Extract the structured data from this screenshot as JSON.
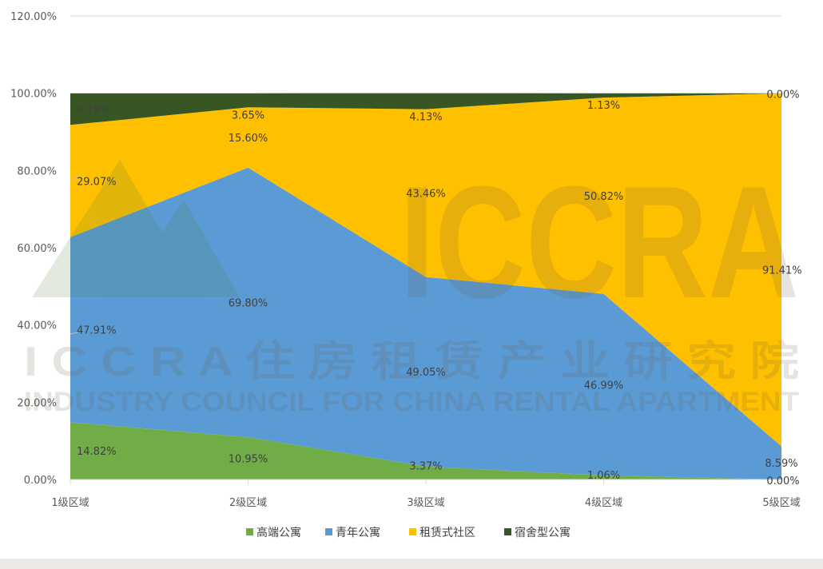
{
  "chart_data": {
    "type": "area",
    "stacked": true,
    "categories": [
      "1级区域",
      "2级区域",
      "3级区域",
      "4级区域",
      "5级区域"
    ],
    "series": [
      {
        "name": "高端公寓",
        "color": "#70ad47",
        "values": [
          14.82,
          10.95,
          3.37,
          1.06,
          0.0
        ],
        "labels": [
          "14.82%",
          "10.95%",
          "3.37%",
          "1.06%",
          "0.00%"
        ]
      },
      {
        "name": "青年公寓",
        "color": "#5b9bd5",
        "values": [
          47.91,
          69.8,
          49.05,
          46.99,
          8.59
        ],
        "labels": [
          "47.91%",
          "69.80%",
          "49.05%",
          "46.99%",
          "8.59%"
        ]
      },
      {
        "name": "租赁式社区",
        "color": "#ffc000",
        "values": [
          29.07,
          15.6,
          43.46,
          50.82,
          91.41
        ],
        "labels": [
          "29.07%",
          "15.60%",
          "43.46%",
          "50.82%",
          "91.41%"
        ]
      },
      {
        "name": "宿舍型公寓",
        "color": "#375623",
        "values": [
          8.19,
          3.65,
          4.13,
          1.13,
          0.0
        ],
        "labels": [
          "8.19%",
          "3.65%",
          "4.13%",
          "1.13%",
          "0.00%"
        ]
      }
    ],
    "y_ticks": [
      "0.00%",
      "20.00%",
      "40.00%",
      "60.00%",
      "80.00%",
      "100.00%",
      "120.00%"
    ],
    "ylim": [
      0,
      120
    ],
    "legend": "bottom",
    "grid": false
  },
  "watermark": {
    "logo_text": "ICCRA",
    "line1": "I C C R A 住 房 租 赁 产 业 研 究 院",
    "line2": "INDUSTRY COUNCIL FOR CHINA RENTAL APARTMENT"
  }
}
